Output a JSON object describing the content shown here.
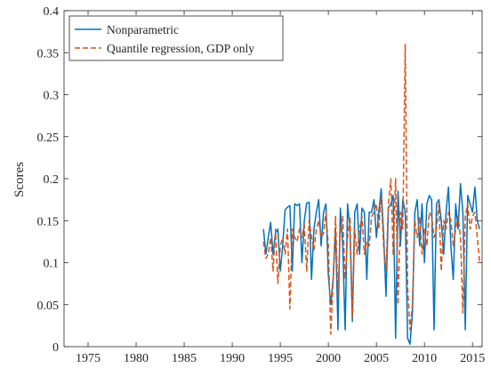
{
  "chart_data": {
    "type": "line",
    "ylabel": "Scores",
    "xlim": [
      1972.5,
      2016
    ],
    "ylim": [
      0,
      0.4
    ],
    "x_ticks": [
      "1975",
      "1980",
      "1985",
      "1990",
      "1995",
      "2000",
      "2005",
      "2010",
      "2015"
    ],
    "x_tick_values": [
      1975,
      1980,
      1985,
      1990,
      1995,
      2000,
      2005,
      2010,
      2015
    ],
    "y_ticks": [
      "0",
      "0.05",
      "0.1",
      "0.15",
      "0.2",
      "0.25",
      "0.3",
      "0.35",
      "0.4"
    ],
    "y_tick_values": [
      0,
      0.05,
      0.1,
      0.15,
      0.2,
      0.25,
      0.3,
      0.35,
      0.4
    ],
    "grid": false,
    "legend_position": "top-left",
    "x": [
      1993.25,
      1993.5,
      1993.75,
      1994,
      1994.25,
      1994.5,
      1994.75,
      1995,
      1995.25,
      1995.5,
      1995.75,
      1996,
      1996.25,
      1996.5,
      1996.75,
      1997,
      1997.25,
      1997.5,
      1997.75,
      1998,
      1998.25,
      1998.5,
      1998.75,
      1999,
      1999.25,
      1999.5,
      1999.75,
      2000,
      2000.25,
      2000.5,
      2000.75,
      2001,
      2001.25,
      2001.5,
      2001.75,
      2002,
      2002.25,
      2002.5,
      2002.75,
      2003,
      2003.25,
      2003.5,
      2003.75,
      2004,
      2004.25,
      2004.5,
      2004.75,
      2005,
      2005.25,
      2005.5,
      2005.75,
      2006,
      2006.25,
      2006.5,
      2006.75,
      2007,
      2007.25,
      2007.5,
      2007.75,
      2008,
      2008.25,
      2008.5,
      2008.75,
      2009,
      2009.25,
      2009.5,
      2009.75,
      2010,
      2010.25,
      2010.5,
      2010.75,
      2011,
      2011.25,
      2011.5,
      2011.75,
      2012,
      2012.25,
      2012.5,
      2012.75,
      2013,
      2013.25,
      2013.5,
      2013.75,
      2014,
      2014.25,
      2014.5,
      2014.75,
      2015,
      2015.25,
      2015.5,
      2015.75
    ],
    "series": [
      {
        "name": "Nonparametric",
        "color": "#0072BD",
        "dash": "solid",
        "values": [
          0.14,
          0.11,
          0.13,
          0.148,
          0.11,
          0.135,
          0.14,
          0.09,
          0.12,
          0.163,
          0.166,
          0.168,
          0.09,
          0.17,
          0.168,
          0.17,
          0.1,
          0.15,
          0.171,
          0.172,
          0.08,
          0.14,
          0.16,
          0.175,
          0.12,
          0.16,
          0.17,
          0.085,
          0.05,
          0.08,
          0.14,
          0.02,
          0.165,
          0.12,
          0.02,
          0.17,
          0.14,
          0.03,
          0.16,
          0.17,
          0.11,
          0.165,
          0.16,
          0.08,
          0.16,
          0.16,
          0.175,
          0.13,
          0.16,
          0.188,
          0.135,
          0.06,
          0.165,
          0.17,
          0.18,
          0.01,
          0.185,
          0.12,
          0.175,
          0.16,
          0.01,
          0.003,
          0.04,
          0.16,
          0.175,
          0.12,
          0.17,
          0.1,
          0.17,
          0.18,
          0.175,
          0.02,
          0.17,
          0.175,
          0.15,
          0.11,
          0.16,
          0.19,
          0.12,
          0.08,
          0.17,
          0.14,
          0.194,
          0.16,
          0.02,
          0.18,
          0.17,
          0.16,
          0.19,
          0.15,
          0.14
        ]
      },
      {
        "name": "Quantile regression, GDP only",
        "color": "#D95319",
        "dash": "dashed",
        "values": [
          0.125,
          0.105,
          0.11,
          0.13,
          0.09,
          0.14,
          0.075,
          0.12,
          0.13,
          0.11,
          0.14,
          0.045,
          0.14,
          0.13,
          0.125,
          0.14,
          0.13,
          0.145,
          0.09,
          0.15,
          0.13,
          0.115,
          0.14,
          0.15,
          0.13,
          0.135,
          0.16,
          0.12,
          0.015,
          0.08,
          0.155,
          0.06,
          0.14,
          0.155,
          0.08,
          0.13,
          0.155,
          0.035,
          0.14,
          0.11,
          0.14,
          0.155,
          0.11,
          0.125,
          0.12,
          0.155,
          0.16,
          0.17,
          0.14,
          0.18,
          0.12,
          0.09,
          0.17,
          0.2,
          0.11,
          0.2,
          0.05,
          0.16,
          0.14,
          0.36,
          0.07,
          0.02,
          0.05,
          0.15,
          0.13,
          0.155,
          0.11,
          0.14,
          0.12,
          0.16,
          0.155,
          0.13,
          0.14,
          0.17,
          0.09,
          0.15,
          0.14,
          0.16,
          0.15,
          0.12,
          0.14,
          0.155,
          0.13,
          0.04,
          0.155,
          0.17,
          0.14,
          0.155,
          0.16,
          0.13,
          0.1
        ]
      }
    ]
  }
}
